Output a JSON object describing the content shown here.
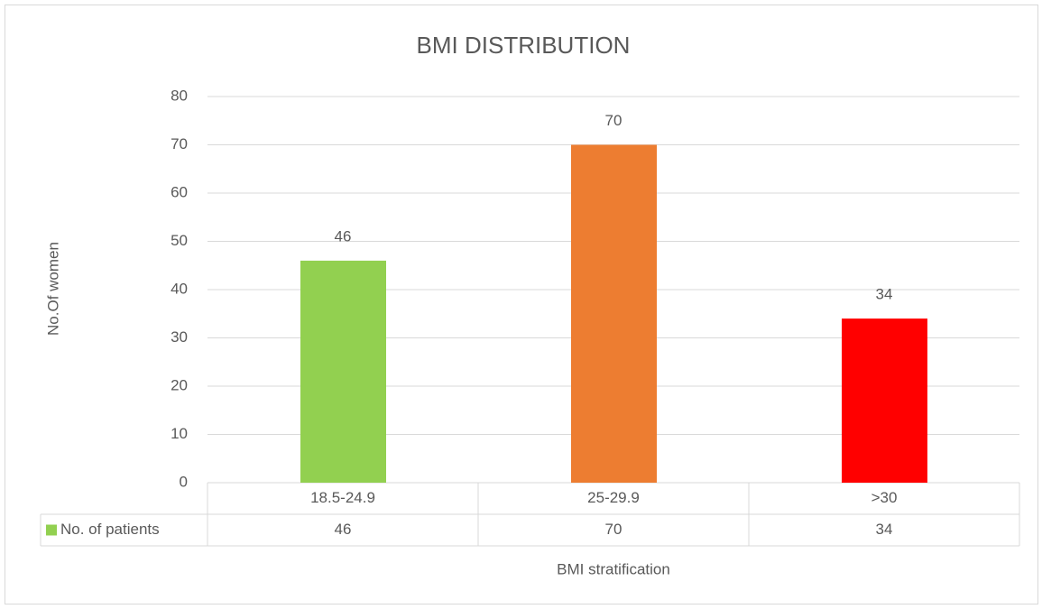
{
  "chart_data": {
    "type": "bar",
    "title": "BMI DISTRIBUTION",
    "x_label": "BMI stratification",
    "y_label": "No.Of women",
    "categories": [
      "18.5-24.9",
      "25-29.9",
      ">30"
    ],
    "series": [
      {
        "name": "No. of patients",
        "color": "#92d050",
        "colors": [
          "#92d050",
          "#ed7d31",
          "#ff0000"
        ],
        "values": [
          46,
          70,
          34
        ]
      }
    ],
    "ylim": [
      0,
      80
    ],
    "yticks": [
      0,
      10,
      20,
      30,
      40,
      50,
      60,
      70,
      80
    ],
    "grid": true,
    "data_table": true
  }
}
